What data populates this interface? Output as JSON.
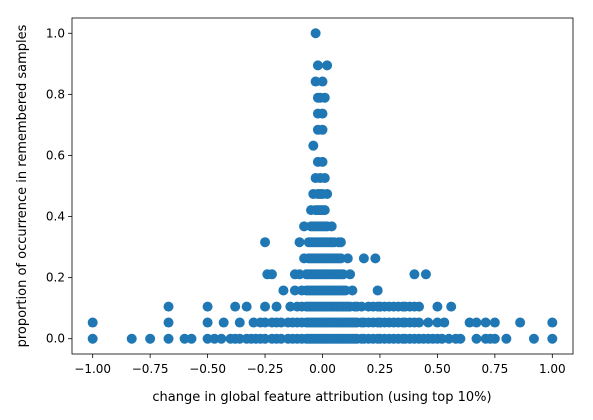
{
  "chart_data": {
    "type": "scatter",
    "title": "",
    "xlabel": "change in global feature attribution (using top 10%)",
    "ylabel": "proportion of occurrence in remembered samples",
    "xlim": [
      -1.09,
      1.09
    ],
    "ylim": [
      -0.05,
      1.05
    ],
    "xticks": [
      -1.0,
      -0.75,
      -0.5,
      -0.25,
      0.0,
      0.25,
      0.5,
      0.75,
      1.0
    ],
    "xtick_labels": [
      "−1.00",
      "−0.75",
      "−0.50",
      "−0.25",
      "0.00",
      "0.25",
      "0.50",
      "0.75",
      "1.00"
    ],
    "yticks": [
      0.0,
      0.2,
      0.4,
      0.6,
      0.8,
      1.0
    ],
    "ytick_labels": [
      "0.0",
      "0.2",
      "0.4",
      "0.6",
      "0.8",
      "1.0"
    ],
    "grid": false,
    "legend": "none",
    "marker_color": "#1f77b4",
    "series": [
      {
        "points": [
          [
            -1.0,
            0.0
          ],
          [
            -1.0,
            0.053
          ],
          [
            -0.83,
            0.0
          ],
          [
            -0.75,
            0.0
          ],
          [
            -0.67,
            0.0
          ],
          [
            -0.67,
            0.053
          ],
          [
            -0.67,
            0.105
          ],
          [
            -0.6,
            0.0
          ],
          [
            -0.57,
            0.0
          ],
          [
            -0.5,
            0.0
          ],
          [
            -0.5,
            0.053
          ],
          [
            -0.5,
            0.105
          ],
          [
            -0.47,
            0.0
          ],
          [
            -0.44,
            0.0
          ],
          [
            -0.43,
            0.053
          ],
          [
            -0.4,
            0.0
          ],
          [
            -0.38,
            0.0
          ],
          [
            -0.38,
            0.105
          ],
          [
            -0.36,
            0.0
          ],
          [
            -0.36,
            0.053
          ],
          [
            -0.33,
            0.0
          ],
          [
            -0.33,
            0.105
          ],
          [
            -0.31,
            0.0
          ],
          [
            -0.3,
            0.053
          ],
          [
            -0.29,
            0.0
          ],
          [
            -0.27,
            0.0
          ],
          [
            -0.27,
            0.053
          ],
          [
            -0.25,
            0.0
          ],
          [
            -0.25,
            0.053
          ],
          [
            -0.25,
            0.105
          ],
          [
            -0.25,
            0.316
          ],
          [
            -0.24,
            0.211
          ],
          [
            -0.22,
            0.0
          ],
          [
            -0.22,
            0.053
          ],
          [
            -0.22,
            0.211
          ],
          [
            -0.2,
            0.0
          ],
          [
            -0.2,
            0.053
          ],
          [
            -0.2,
            0.105
          ],
          [
            -0.18,
            0.0
          ],
          [
            -0.18,
            0.053
          ],
          [
            -0.17,
            0.158
          ],
          [
            -0.15,
            0.0
          ],
          [
            -0.15,
            0.053
          ],
          [
            -0.14,
            0.105
          ],
          [
            -0.13,
            0.0
          ],
          [
            -0.13,
            0.053
          ],
          [
            -0.12,
            0.158
          ],
          [
            -0.12,
            0.211
          ],
          [
            -0.11,
            0.0
          ],
          [
            -0.11,
            0.053
          ],
          [
            -0.11,
            0.105
          ],
          [
            -0.1,
            0.316
          ],
          [
            -0.1,
            0.211
          ],
          [
            -0.09,
            0.0
          ],
          [
            -0.09,
            0.053
          ],
          [
            -0.09,
            0.105
          ],
          [
            -0.09,
            0.158
          ],
          [
            -0.08,
            0.263
          ],
          [
            -0.08,
            0.368
          ],
          [
            -0.07,
            0.0
          ],
          [
            -0.07,
            0.053
          ],
          [
            -0.07,
            0.105
          ],
          [
            -0.07,
            0.158
          ],
          [
            -0.07,
            0.211
          ],
          [
            -0.06,
            0.0
          ],
          [
            -0.06,
            0.053
          ],
          [
            -0.06,
            0.105
          ],
          [
            -0.06,
            0.158
          ],
          [
            -0.06,
            0.211
          ],
          [
            -0.06,
            0.263
          ],
          [
            -0.06,
            0.316
          ],
          [
            -0.05,
            0.0
          ],
          [
            -0.05,
            0.053
          ],
          [
            -0.05,
            0.105
          ],
          [
            -0.05,
            0.158
          ],
          [
            -0.05,
            0.211
          ],
          [
            -0.05,
            0.263
          ],
          [
            -0.05,
            0.316
          ],
          [
            -0.05,
            0.368
          ],
          [
            -0.05,
            0.421
          ],
          [
            -0.04,
            0.0
          ],
          [
            -0.04,
            0.053
          ],
          [
            -0.04,
            0.105
          ],
          [
            -0.04,
            0.158
          ],
          [
            -0.04,
            0.211
          ],
          [
            -0.04,
            0.263
          ],
          [
            -0.04,
            0.316
          ],
          [
            -0.04,
            0.368
          ],
          [
            -0.04,
            0.474
          ],
          [
            -0.04,
            0.632
          ],
          [
            -0.03,
            0.0
          ],
          [
            -0.03,
            0.053
          ],
          [
            -0.03,
            0.105
          ],
          [
            -0.03,
            0.158
          ],
          [
            -0.03,
            0.211
          ],
          [
            -0.03,
            0.263
          ],
          [
            -0.03,
            0.316
          ],
          [
            -0.03,
            0.368
          ],
          [
            -0.03,
            0.421
          ],
          [
            -0.03,
            0.526
          ],
          [
            -0.03,
            0.842
          ],
          [
            -0.03,
            1.0
          ],
          [
            -0.02,
            0.0
          ],
          [
            -0.02,
            0.053
          ],
          [
            -0.02,
            0.105
          ],
          [
            -0.02,
            0.158
          ],
          [
            -0.02,
            0.211
          ],
          [
            -0.02,
            0.263
          ],
          [
            -0.02,
            0.316
          ],
          [
            -0.02,
            0.368
          ],
          [
            -0.02,
            0.421
          ],
          [
            -0.02,
            0.474
          ],
          [
            -0.02,
            0.579
          ],
          [
            -0.02,
            0.684
          ],
          [
            -0.02,
            0.737
          ],
          [
            -0.02,
            0.789
          ],
          [
            -0.02,
            0.895
          ],
          [
            -0.01,
            0.0
          ],
          [
            -0.01,
            0.053
          ],
          [
            -0.01,
            0.105
          ],
          [
            -0.01,
            0.158
          ],
          [
            -0.01,
            0.211
          ],
          [
            -0.01,
            0.263
          ],
          [
            -0.01,
            0.316
          ],
          [
            -0.01,
            0.368
          ],
          [
            -0.01,
            0.421
          ],
          [
            -0.01,
            0.474
          ],
          [
            -0.01,
            0.526
          ],
          [
            -0.01,
            0.789
          ],
          [
            0.0,
            0.0
          ],
          [
            0.0,
            0.053
          ],
          [
            0.0,
            0.105
          ],
          [
            0.0,
            0.158
          ],
          [
            0.0,
            0.211
          ],
          [
            0.0,
            0.263
          ],
          [
            0.0,
            0.316
          ],
          [
            0.0,
            0.368
          ],
          [
            0.0,
            0.421
          ],
          [
            0.0,
            0.474
          ],
          [
            0.0,
            0.579
          ],
          [
            0.0,
            0.684
          ],
          [
            0.0,
            0.737
          ],
          [
            0.0,
            0.842
          ],
          [
            0.01,
            0.0
          ],
          [
            0.01,
            0.053
          ],
          [
            0.01,
            0.105
          ],
          [
            0.01,
            0.158
          ],
          [
            0.01,
            0.211
          ],
          [
            0.01,
            0.263
          ],
          [
            0.01,
            0.316
          ],
          [
            0.01,
            0.368
          ],
          [
            0.01,
            0.421
          ],
          [
            0.01,
            0.526
          ],
          [
            0.01,
            0.789
          ],
          [
            0.02,
            0.0
          ],
          [
            0.02,
            0.053
          ],
          [
            0.02,
            0.105
          ],
          [
            0.02,
            0.158
          ],
          [
            0.02,
            0.211
          ],
          [
            0.02,
            0.263
          ],
          [
            0.02,
            0.316
          ],
          [
            0.02,
            0.368
          ],
          [
            0.02,
            0.474
          ],
          [
            0.02,
            0.895
          ],
          [
            0.03,
            0.0
          ],
          [
            0.03,
            0.053
          ],
          [
            0.03,
            0.105
          ],
          [
            0.03,
            0.158
          ],
          [
            0.03,
            0.211
          ],
          [
            0.03,
            0.263
          ],
          [
            0.03,
            0.316
          ],
          [
            0.04,
            0.0
          ],
          [
            0.04,
            0.053
          ],
          [
            0.04,
            0.105
          ],
          [
            0.04,
            0.158
          ],
          [
            0.04,
            0.211
          ],
          [
            0.04,
            0.263
          ],
          [
            0.04,
            0.316
          ],
          [
            0.04,
            0.368
          ],
          [
            0.05,
            0.0
          ],
          [
            0.05,
            0.053
          ],
          [
            0.05,
            0.105
          ],
          [
            0.05,
            0.158
          ],
          [
            0.05,
            0.211
          ],
          [
            0.05,
            0.263
          ],
          [
            0.05,
            0.316
          ],
          [
            0.06,
            0.0
          ],
          [
            0.06,
            0.053
          ],
          [
            0.06,
            0.105
          ],
          [
            0.06,
            0.158
          ],
          [
            0.06,
            0.211
          ],
          [
            0.06,
            0.263
          ],
          [
            0.07,
            0.0
          ],
          [
            0.07,
            0.053
          ],
          [
            0.07,
            0.105
          ],
          [
            0.07,
            0.158
          ],
          [
            0.07,
            0.211
          ],
          [
            0.07,
            0.263
          ],
          [
            0.07,
            0.316
          ],
          [
            0.08,
            0.0
          ],
          [
            0.08,
            0.053
          ],
          [
            0.08,
            0.105
          ],
          [
            0.08,
            0.158
          ],
          [
            0.08,
            0.211
          ],
          [
            0.08,
            0.263
          ],
          [
            0.08,
            0.316
          ],
          [
            0.09,
            0.0
          ],
          [
            0.09,
            0.053
          ],
          [
            0.09,
            0.105
          ],
          [
            0.09,
            0.158
          ],
          [
            0.09,
            0.211
          ],
          [
            0.1,
            0.0
          ],
          [
            0.1,
            0.053
          ],
          [
            0.1,
            0.105
          ],
          [
            0.1,
            0.158
          ],
          [
            0.11,
            0.0
          ],
          [
            0.11,
            0.053
          ],
          [
            0.11,
            0.105
          ],
          [
            0.11,
            0.263
          ],
          [
            0.12,
            0.0
          ],
          [
            0.12,
            0.053
          ],
          [
            0.12,
            0.105
          ],
          [
            0.12,
            0.211
          ],
          [
            0.13,
            0.0
          ],
          [
            0.13,
            0.053
          ],
          [
            0.13,
            0.158
          ],
          [
            0.14,
            0.0
          ],
          [
            0.14,
            0.053
          ],
          [
            0.14,
            0.105
          ],
          [
            0.15,
            0.0
          ],
          [
            0.15,
            0.053
          ],
          [
            0.15,
            0.105
          ],
          [
            0.17,
            0.0
          ],
          [
            0.17,
            0.053
          ],
          [
            0.17,
            0.105
          ],
          [
            0.18,
            0.0
          ],
          [
            0.18,
            0.053
          ],
          [
            0.18,
            0.263
          ],
          [
            0.2,
            0.0
          ],
          [
            0.2,
            0.053
          ],
          [
            0.2,
            0.105
          ],
          [
            0.22,
            0.0
          ],
          [
            0.22,
            0.053
          ],
          [
            0.22,
            0.105
          ],
          [
            0.23,
            0.263
          ],
          [
            0.24,
            0.0
          ],
          [
            0.24,
            0.053
          ],
          [
            0.24,
            0.105
          ],
          [
            0.24,
            0.158
          ],
          [
            0.25,
            0.0
          ],
          [
            0.25,
            0.053
          ],
          [
            0.25,
            0.105
          ],
          [
            0.27,
            0.0
          ],
          [
            0.27,
            0.053
          ],
          [
            0.27,
            0.105
          ],
          [
            0.29,
            0.0
          ],
          [
            0.29,
            0.053
          ],
          [
            0.29,
            0.105
          ],
          [
            0.31,
            0.0
          ],
          [
            0.31,
            0.053
          ],
          [
            0.31,
            0.105
          ],
          [
            0.33,
            0.0
          ],
          [
            0.33,
            0.053
          ],
          [
            0.33,
            0.105
          ],
          [
            0.35,
            0.0
          ],
          [
            0.35,
            0.053
          ],
          [
            0.35,
            0.105
          ],
          [
            0.36,
            0.0
          ],
          [
            0.36,
            0.053
          ],
          [
            0.36,
            0.105
          ],
          [
            0.38,
            0.0
          ],
          [
            0.38,
            0.053
          ],
          [
            0.38,
            0.105
          ],
          [
            0.4,
            0.0
          ],
          [
            0.4,
            0.053
          ],
          [
            0.4,
            0.105
          ],
          [
            0.4,
            0.211
          ],
          [
            0.42,
            0.0
          ],
          [
            0.42,
            0.053
          ],
          [
            0.42,
            0.105
          ],
          [
            0.44,
            0.0
          ],
          [
            0.45,
            0.211
          ],
          [
            0.46,
            0.0
          ],
          [
            0.46,
            0.053
          ],
          [
            0.48,
            0.0
          ],
          [
            0.5,
            0.0
          ],
          [
            0.5,
            0.053
          ],
          [
            0.5,
            0.105
          ],
          [
            0.52,
            0.0
          ],
          [
            0.53,
            0.053
          ],
          [
            0.55,
            0.0
          ],
          [
            0.56,
            0.105
          ],
          [
            0.58,
            0.0
          ],
          [
            0.6,
            0.0
          ],
          [
            0.64,
            0.053
          ],
          [
            0.67,
            0.0
          ],
          [
            0.67,
            0.053
          ],
          [
            0.71,
            0.0
          ],
          [
            0.71,
            0.053
          ],
          [
            0.73,
            0.0
          ],
          [
            0.75,
            0.053
          ],
          [
            0.75,
            0.0
          ],
          [
            0.8,
            0.0
          ],
          [
            0.86,
            0.053
          ],
          [
            0.92,
            0.0
          ],
          [
            1.0,
            0.0
          ],
          [
            1.0,
            0.053
          ]
        ]
      }
    ]
  }
}
